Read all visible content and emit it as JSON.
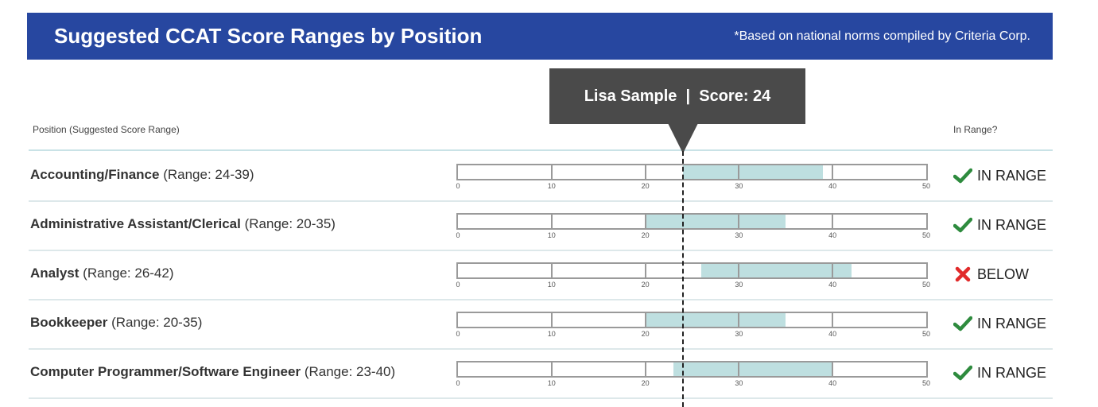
{
  "banner": {
    "title": "Suggested CCAT Score Ranges by Position",
    "note": "*Based on national norms compiled by Criteria Corp."
  },
  "table_header": {
    "position_col": "Position (Suggested Score Range)",
    "status_col": "In Range?"
  },
  "tooltip": {
    "text": "Lisa Sample  |  Score: 24"
  },
  "colors": {
    "banner": "#2747a0",
    "range_fill": "#bedfe0",
    "check": "#2e8b3e",
    "cross": "#e12a2a"
  },
  "chart_data": {
    "type": "bar",
    "candidate": "Lisa Sample",
    "score": 24,
    "xlim": [
      0,
      50
    ],
    "ticks": [
      0,
      10,
      20,
      30,
      40,
      50
    ],
    "rows": [
      {
        "name": "Accounting/Finance",
        "range_text": "(Range: 24-39)",
        "min": 24,
        "max": 39,
        "status": "IN RANGE",
        "icon": "check-icon"
      },
      {
        "name": "Administrative Assistant/Clerical",
        "range_text": "(Range: 20-35)",
        "min": 20,
        "max": 35,
        "status": "IN RANGE",
        "icon": "check-icon"
      },
      {
        "name": "Analyst",
        "range_text": "(Range: 26-42)",
        "min": 26,
        "max": 42,
        "status": "BELOW",
        "icon": "x-icon"
      },
      {
        "name": "Bookkeeper",
        "range_text": "(Range: 20-35)",
        "min": 20,
        "max": 35,
        "status": "IN RANGE",
        "icon": "check-icon"
      },
      {
        "name": "Computer Programmer/Software Engineer",
        "range_text": "(Range: 23-40)",
        "min": 23,
        "max": 40,
        "status": "IN RANGE",
        "icon": "check-icon"
      }
    ]
  }
}
